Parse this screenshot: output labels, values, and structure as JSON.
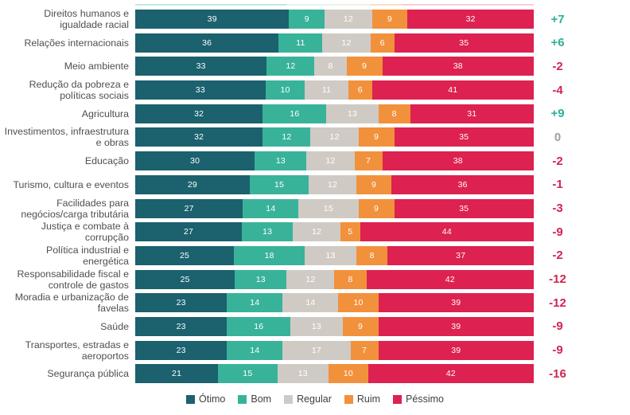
{
  "chart_data": {
    "type": "bar",
    "stacked": true,
    "orientation": "horizontal",
    "unit": "percent",
    "series": [
      {
        "key": "otimo",
        "label": "Ótimo",
        "color": "#1b616e"
      },
      {
        "key": "bom",
        "label": "Bom",
        "color": "#38b39a"
      },
      {
        "key": "regular",
        "label": "Regular",
        "color": "#d0cac4"
      },
      {
        "key": "ruim",
        "label": "Ruim",
        "color": "#f2913c"
      },
      {
        "key": "pessimo",
        "label": "Péssimo",
        "color": "#dd2150"
      }
    ],
    "rows": [
      {
        "label": "Direitos humanos e igualdade racial",
        "values": [
          39,
          9,
          12,
          9,
          32
        ],
        "net": "+7",
        "net_type": "positive"
      },
      {
        "label": "Relações internacionais",
        "values": [
          36,
          11,
          12,
          6,
          35
        ],
        "net": "+6",
        "net_type": "positive"
      },
      {
        "label": "Meio ambiente",
        "values": [
          33,
          12,
          8,
          9,
          38
        ],
        "net": "-2",
        "net_type": "negative"
      },
      {
        "label": "Redução da pobreza e políticas sociais",
        "values": [
          33,
          10,
          11,
          6,
          41
        ],
        "net": "-4",
        "net_type": "negative"
      },
      {
        "label": "Agricultura",
        "values": [
          32,
          16,
          13,
          8,
          31
        ],
        "net": "+9",
        "net_type": "positive"
      },
      {
        "label": "Investimentos, infraestrutura e obras",
        "values": [
          32,
          12,
          12,
          9,
          35
        ],
        "net": "0",
        "net_type": "zero"
      },
      {
        "label": "Educação",
        "values": [
          30,
          13,
          12,
          7,
          38
        ],
        "net": "-2",
        "net_type": "negative"
      },
      {
        "label": "Turismo, cultura e eventos",
        "values": [
          29,
          15,
          12,
          9,
          36
        ],
        "net": "-1",
        "net_type": "negative"
      },
      {
        "label": "Facilidades para negócios/carga tributária",
        "values": [
          27,
          14,
          15,
          9,
          35
        ],
        "net": "-3",
        "net_type": "negative"
      },
      {
        "label": "Justiça e combate à corrupção",
        "values": [
          27,
          13,
          12,
          5,
          44
        ],
        "net": "-9",
        "net_type": "negative"
      },
      {
        "label": "Política industrial e energética",
        "values": [
          25,
          18,
          13,
          8,
          37
        ],
        "net": "-2",
        "net_type": "negative"
      },
      {
        "label": "Responsabilidade fiscal e controle de gastos",
        "values": [
          25,
          13,
          12,
          8,
          42
        ],
        "net": "-12",
        "net_type": "negative"
      },
      {
        "label": "Moradia e urbanização de favelas",
        "values": [
          23,
          14,
          14,
          10,
          39
        ],
        "net": "-12",
        "net_type": "negative"
      },
      {
        "label": "Saúde",
        "values": [
          23,
          16,
          13,
          9,
          39
        ],
        "net": "-9",
        "net_type": "negative"
      },
      {
        "label": "Transportes, estradas e aeroportos",
        "values": [
          23,
          14,
          17,
          7,
          39
        ],
        "net": "-9",
        "net_type": "negative"
      },
      {
        "label": "Segurança pública",
        "values": [
          21,
          15,
          13,
          10,
          42
        ],
        "net": "-16",
        "net_type": "negative"
      }
    ],
    "net_colors": {
      "positive": "#2bb199",
      "negative": "#d22450",
      "zero": "#9e9e9e"
    },
    "legend_position": "bottom"
  }
}
